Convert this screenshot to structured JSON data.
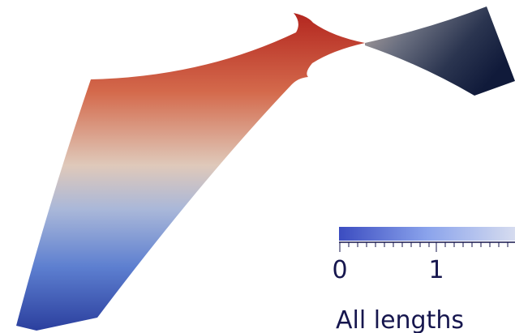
{
  "scale_bar": {
    "labels": [
      "0",
      "1"
    ],
    "caption": "All lengths"
  }
}
